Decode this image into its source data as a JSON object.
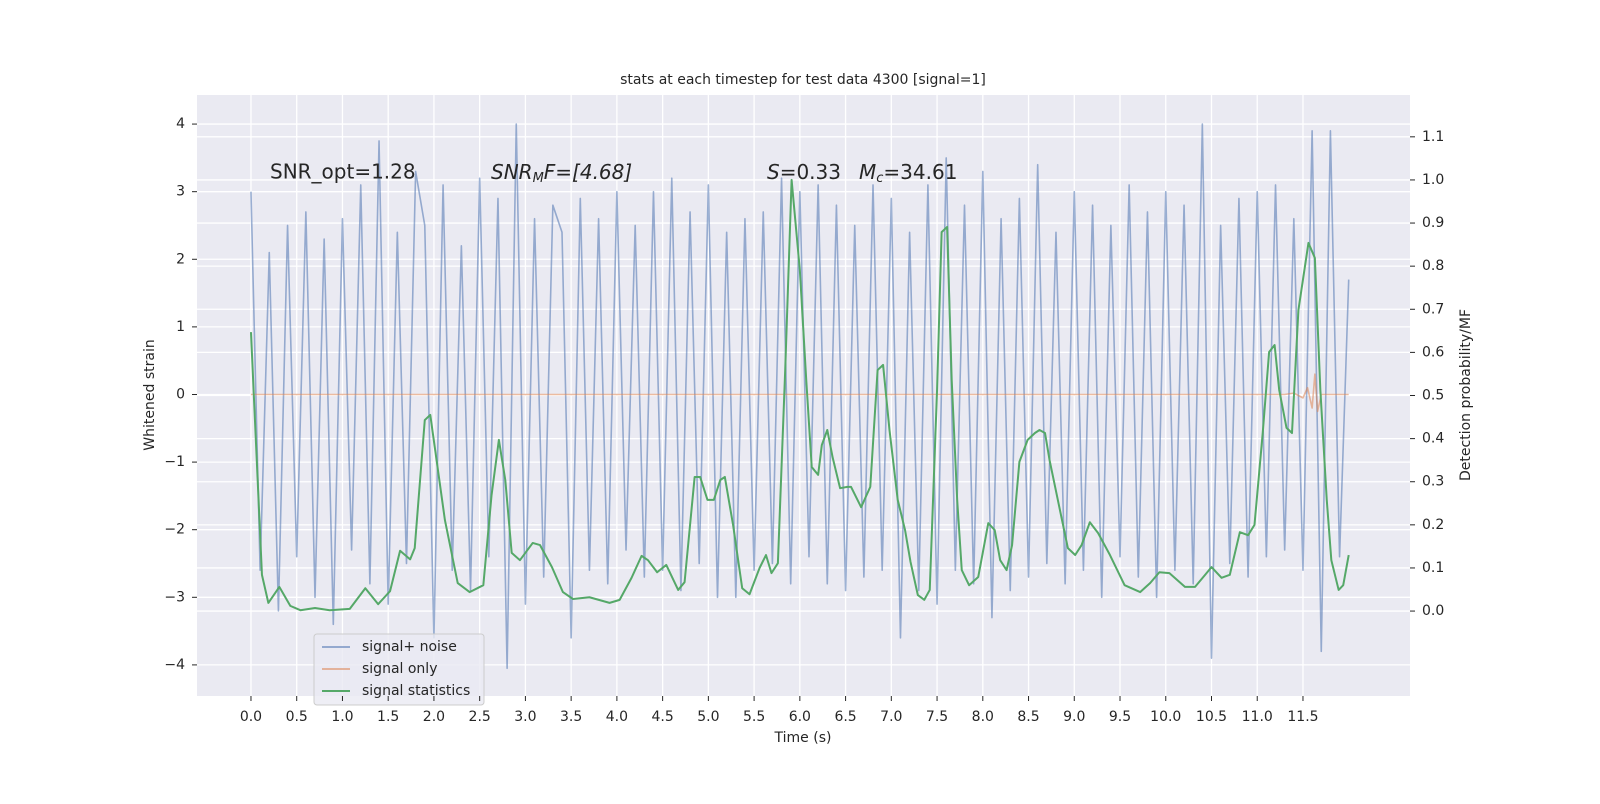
{
  "chart_data": {
    "type": "line",
    "title": "stats at each timestep for test data 4300 [signal=1]",
    "xlabel": "Time (s)",
    "ylabel": "Whitened strain",
    "y2label": "Detection probability/MF",
    "annotations": [
      "SNR_opt=1.28",
      [
        "SNR",
        "M",
        "F=[4.68]"
      ],
      [
        "S",
        "=0.33"
      ],
      [
        "M",
        "c",
        "=34.61"
      ]
    ],
    "xlim": [
      -0.59,
      12.67
    ],
    "ylim": [
      -4.46,
      4.43
    ],
    "y2lim": [
      -0.197,
      1.197
    ],
    "xticks": [
      {
        "value": 0,
        "label": "0.0"
      },
      0.5,
      {
        "value": 1,
        "label": "1.0"
      },
      1.5,
      {
        "value": 2,
        "label": "2.0"
      },
      2.5,
      {
        "value": 3,
        "label": "3.0"
      },
      3.5,
      {
        "value": 4,
        "label": "4.0"
      },
      4.5,
      {
        "value": 5,
        "label": "5.0"
      },
      5.5,
      {
        "value": 6,
        "label": "6.0"
      },
      6.5,
      {
        "value": 7,
        "label": "7.0"
      },
      7.5,
      {
        "value": 8,
        "label": "8.0"
      },
      8.5,
      {
        "value": 9,
        "label": "9.0"
      },
      9.5,
      {
        "value": 10,
        "label": "10.0"
      },
      10.5,
      {
        "value": 11,
        "label": "11.0"
      },
      11.5
    ],
    "yticks": [
      {
        "value": -4,
        "label": "−4"
      },
      {
        "value": -3,
        "label": "−3"
      },
      {
        "value": -2,
        "label": "−2"
      },
      {
        "value": -1,
        "label": "−1"
      },
      0,
      1,
      2,
      3,
      4
    ],
    "y2ticks": [
      {
        "value": 0,
        "label": "0.0"
      },
      0.1,
      0.2,
      0.3,
      0.4,
      0.5,
      0.6,
      0.7,
      0.8,
      0.9,
      {
        "value": 1,
        "label": "1.0"
      },
      1.1
    ],
    "grid": true,
    "legend": "lower left",
    "series": [
      {
        "name": "signal+ noise",
        "color": "#4c72b0",
        "axis": "y",
        "x": [
          0.0,
          0.1,
          0.2,
          0.3,
          0.4,
          0.5,
          0.6,
          0.7,
          0.8,
          0.9,
          1.0,
          1.1,
          1.2,
          1.3,
          1.4,
          1.5,
          1.6,
          1.7,
          1.8,
          1.9,
          2.0,
          2.1,
          2.2,
          2.3,
          2.4,
          2.5,
          2.6,
          2.7,
          2.8,
          2.9,
          3.0,
          3.1,
          3.2,
          3.3,
          3.4,
          3.5,
          3.6,
          3.7,
          3.8,
          3.9,
          4.0,
          4.1,
          4.2,
          4.3,
          4.4,
          4.5,
          4.6,
          4.7,
          4.8,
          4.9,
          5.0,
          5.1,
          5.2,
          5.3,
          5.4,
          5.5,
          5.6,
          5.7,
          5.8,
          5.9,
          6.0,
          6.1,
          6.2,
          6.3,
          6.4,
          6.5,
          6.6,
          6.7,
          6.8,
          6.9,
          7.0,
          7.1,
          7.2,
          7.3,
          7.4,
          7.5,
          7.6,
          7.7,
          7.8,
          7.9,
          8.0,
          8.1,
          8.2,
          8.3,
          8.4,
          8.5,
          8.6,
          8.7,
          8.8,
          8.9,
          9.0,
          9.1,
          9.2,
          9.3,
          9.4,
          9.5,
          9.6,
          9.7,
          9.8,
          9.9,
          10.0,
          10.1,
          10.2,
          10.3,
          10.4,
          10.5,
          10.6,
          10.7,
          10.8,
          10.9,
          11.0,
          11.1,
          11.2,
          11.3,
          11.4,
          11.5,
          11.6,
          11.7,
          11.8,
          11.9,
          12.0
        ],
        "values": [
          3.0,
          -2.6,
          2.1,
          -3.2,
          2.5,
          -2.4,
          2.7,
          -3.0,
          2.3,
          -3.4,
          2.6,
          -2.3,
          3.1,
          -2.8,
          3.75,
          -3.1,
          2.4,
          -2.5,
          3.3,
          2.5,
          -3.6,
          3.1,
          -2.6,
          2.2,
          -2.9,
          3.2,
          -2.4,
          2.9,
          -4.05,
          4.0,
          -3.1,
          2.6,
          -2.7,
          2.8,
          2.4,
          -3.6,
          2.9,
          -2.6,
          2.6,
          -2.8,
          3.0,
          -2.3,
          2.5,
          -2.7,
          3.0,
          -2.6,
          3.2,
          -2.9,
          2.7,
          -2.5,
          3.1,
          -3.0,
          2.4,
          -3.0,
          2.6,
          -2.6,
          2.7,
          -2.5,
          3.2,
          -2.8,
          3.0,
          -2.4,
          3.1,
          -2.8,
          2.8,
          -2.9,
          2.5,
          -2.7,
          3.1,
          -2.6,
          2.9,
          -3.6,
          2.4,
          -2.9,
          3.1,
          -3.1,
          3.5,
          -2.6,
          2.8,
          -2.8,
          3.3,
          -3.3,
          2.6,
          -2.9,
          2.9,
          -2.7,
          3.4,
          -2.5,
          2.4,
          -2.8,
          3.0,
          -2.6,
          2.8,
          -3.0,
          2.5,
          -2.4,
          3.1,
          -2.7,
          2.7,
          -3.0,
          3.0,
          -2.6,
          2.8,
          -2.8,
          4.0,
          -3.9,
          2.5,
          -2.5,
          2.9,
          -2.7,
          3.0,
          -2.4,
          3.1,
          -2.3,
          2.6,
          -2.6,
          3.9,
          -3.8,
          3.9,
          -2.4,
          1.7
        ]
      },
      {
        "name": "signal only",
        "color": "#dd8452",
        "axis": "y",
        "x": [
          0.0,
          11.3,
          11.4,
          11.5,
          11.55,
          11.6,
          11.63,
          11.66,
          11.7,
          11.9,
          12.0
        ],
        "values": [
          0,
          0,
          0.02,
          -0.05,
          0.1,
          -0.2,
          0.3,
          -0.25,
          0,
          0,
          0
        ]
      },
      {
        "name": "signal statistics",
        "color": "#55a868",
        "axis": "y2",
        "x": [
          0,
          0.12,
          0.19,
          0.31,
          0.43,
          0.54,
          0.7,
          0.86,
          1.08,
          1.25,
          1.39,
          1.52,
          1.63,
          1.74,
          1.79,
          1.9,
          1.96,
          2.12,
          2.26,
          2.39,
          2.54,
          2.63,
          2.71,
          2.78,
          2.85,
          2.94,
          3.08,
          3.16,
          3.29,
          3.41,
          3.52,
          3.7,
          3.92,
          4.03,
          4.16,
          4.27,
          4.34,
          4.44,
          4.54,
          4.67,
          4.74,
          4.85,
          4.91,
          4.99,
          5.06,
          5.13,
          5.18,
          5.27,
          5.37,
          5.45,
          5.56,
          5.63,
          5.69,
          5.76,
          5.84,
          5.91,
          6.0,
          6.07,
          6.13,
          6.2,
          6.24,
          6.3,
          6.36,
          6.44,
          6.52,
          6.56,
          6.67,
          6.77,
          6.85,
          6.91,
          6.98,
          7.07,
          7.15,
          7.21,
          7.29,
          7.36,
          7.42,
          7.5,
          7.55,
          7.61,
          7.66,
          7.72,
          7.77,
          7.85,
          7.95,
          8.06,
          8.13,
          8.19,
          8.26,
          8.32,
          8.4,
          8.49,
          8.57,
          8.62,
          8.68,
          8.73,
          8.82,
          8.93,
          9.01,
          9.08,
          9.17,
          9.26,
          9.39,
          9.55,
          9.72,
          9.83,
          9.93,
          10.04,
          10.21,
          10.32,
          10.43,
          10.5,
          10.61,
          10.7,
          10.81,
          10.9,
          10.97,
          11.06,
          11.13,
          11.19,
          11.24,
          11.32,
          11.38,
          11.45,
          11.56,
          11.63,
          11.69,
          11.76,
          11.81,
          11.89,
          11.94,
          12.0
        ],
        "values": [
          0.647,
          0.084,
          0.019,
          0.056,
          0.012,
          0.002,
          0.007,
          0.002,
          0.005,
          0.053,
          0.016,
          0.046,
          0.14,
          0.12,
          0.146,
          0.443,
          0.455,
          0.211,
          0.065,
          0.044,
          0.06,
          0.269,
          0.397,
          0.304,
          0.135,
          0.118,
          0.158,
          0.153,
          0.102,
          0.044,
          0.028,
          0.032,
          0.019,
          0.026,
          0.077,
          0.128,
          0.118,
          0.09,
          0.107,
          0.049,
          0.067,
          0.311,
          0.311,
          0.258,
          0.258,
          0.304,
          0.311,
          0.2,
          0.053,
          0.039,
          0.1,
          0.13,
          0.088,
          0.111,
          0.559,
          1.0,
          0.791,
          0.536,
          0.334,
          0.316,
          0.385,
          0.42,
          0.355,
          0.285,
          0.288,
          0.288,
          0.241,
          0.288,
          0.559,
          0.571,
          0.42,
          0.258,
          0.188,
          0.114,
          0.037,
          0.026,
          0.049,
          0.513,
          0.879,
          0.891,
          0.536,
          0.258,
          0.095,
          0.06,
          0.079,
          0.204,
          0.188,
          0.118,
          0.095,
          0.153,
          0.346,
          0.397,
          0.413,
          0.42,
          0.413,
          0.35,
          0.258,
          0.146,
          0.13,
          0.153,
          0.206,
          0.181,
          0.13,
          0.06,
          0.044,
          0.065,
          0.09,
          0.088,
          0.056,
          0.056,
          0.084,
          0.102,
          0.077,
          0.084,
          0.183,
          0.176,
          0.2,
          0.413,
          0.601,
          0.617,
          0.513,
          0.425,
          0.413,
          0.698,
          0.854,
          0.819,
          0.513,
          0.258,
          0.118,
          0.049,
          0.06,
          0.13
        ]
      }
    ]
  }
}
